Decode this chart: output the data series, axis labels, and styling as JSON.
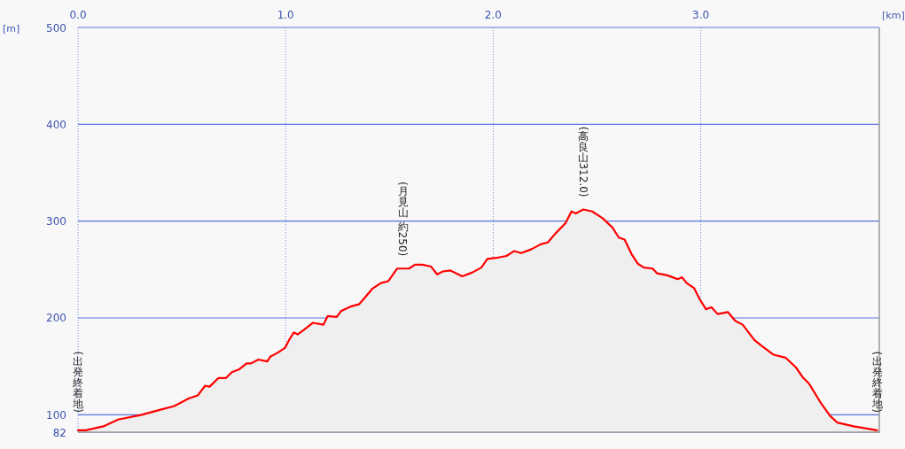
{
  "chart_data": {
    "type": "area",
    "ylabel": "[m]",
    "xlabel": "[km]",
    "color": "#ff0000",
    "grid": true,
    "xlim": [
      0,
      3.86
    ],
    "ylim": [
      82,
      500
    ],
    "xticks": [
      {
        "value": 0,
        "label": "0.0"
      },
      {
        "value": 1,
        "label": "1.0"
      },
      {
        "value": 2,
        "label": "2.0"
      },
      {
        "value": 3,
        "label": "3.0"
      }
    ],
    "yticks": [
      82,
      100,
      200,
      300,
      400,
      500
    ],
    "x": [
      0,
      0.037,
      0.122,
      0.193,
      0.307,
      0.393,
      0.464,
      0.535,
      0.577,
      0.613,
      0.634,
      0.677,
      0.713,
      0.741,
      0.777,
      0.812,
      0.833,
      0.869,
      0.912,
      0.926,
      0.961,
      0.997,
      1.019,
      1.04,
      1.058,
      1.09,
      1.132,
      1.182,
      1.203,
      1.246,
      1.267,
      1.317,
      1.353,
      1.374,
      1.417,
      1.459,
      1.495,
      1.538,
      1.595,
      1.623,
      1.659,
      1.701,
      1.73,
      1.758,
      1.794,
      1.851,
      1.9,
      1.943,
      1.972,
      2.014,
      2.064,
      2.1,
      2.135,
      2.185,
      2.228,
      2.263,
      2.299,
      2.349,
      2.377,
      2.398,
      2.434,
      2.477,
      2.527,
      2.576,
      2.605,
      2.633,
      2.669,
      2.697,
      2.726,
      2.768,
      2.79,
      2.839,
      2.889,
      2.91,
      2.932,
      2.967,
      2.996,
      3.025,
      3.052,
      3.081,
      3.131,
      3.166,
      3.202,
      3.259,
      3.294,
      3.351,
      3.408,
      3.458,
      3.494,
      3.522,
      3.579,
      3.622,
      3.657,
      3.736,
      3.793,
      3.849
    ],
    "values": [
      84,
      84,
      88,
      95,
      100,
      105,
      109,
      117,
      120,
      130,
      129,
      138,
      138,
      144,
      147,
      153,
      153,
      157,
      155,
      160,
      164,
      169,
      178,
      185,
      183,
      188,
      195,
      193,
      202,
      201,
      207,
      212,
      214,
      219,
      230,
      236,
      238,
      251,
      251,
      255,
      255,
      253,
      245,
      248,
      249,
      243,
      247,
      252,
      261,
      262,
      264,
      269,
      267,
      271,
      276,
      278,
      287,
      298,
      310,
      308,
      312,
      310,
      303,
      293,
      283,
      281,
      265,
      256,
      252,
      251,
      246,
      244,
      240,
      242,
      236,
      231,
      219,
      209,
      211,
      204,
      206,
      197,
      193,
      177,
      171,
      162,
      159,
      149,
      138,
      132,
      112,
      99,
      92,
      88,
      86,
      84
    ],
    "annotations": [
      {
        "text": "(出発終着地)",
        "x": 0,
        "y": 84
      },
      {
        "text": "(月見山 約250)",
        "x": 1.566,
        "y": 251
      },
      {
        "text": "(高良山312.0)",
        "x": 2.434,
        "y": 312
      },
      {
        "text": "(出発終着地)",
        "x": 3.849,
        "y": 84
      }
    ]
  }
}
